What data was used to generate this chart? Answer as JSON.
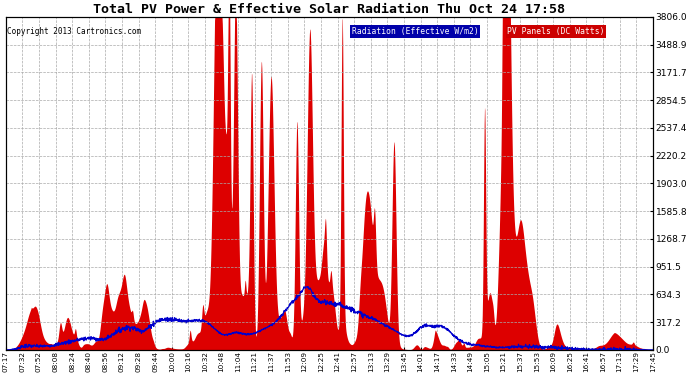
{
  "title": "Total PV Power & Effective Solar Radiation Thu Oct 24 17:58",
  "copyright": "Copyright 2013 Cartronics.com",
  "legend_radiation": "Radiation (Effective W/m2)",
  "legend_pv": "PV Panels (DC Watts)",
  "y_max": 3806.0,
  "y_min": 0.0,
  "y_ticks": [
    0.0,
    317.2,
    634.3,
    951.5,
    1268.7,
    1585.8,
    1903.0,
    2220.2,
    2537.4,
    2854.5,
    3171.7,
    3488.9,
    3806.0
  ],
  "x_labels": [
    "07:17",
    "07:32",
    "07:52",
    "08:08",
    "08:24",
    "08:40",
    "08:56",
    "09:12",
    "09:28",
    "09:44",
    "10:00",
    "10:16",
    "10:32",
    "10:48",
    "11:04",
    "11:21",
    "11:37",
    "11:53",
    "12:09",
    "12:25",
    "12:41",
    "12:57",
    "13:13",
    "13:29",
    "13:45",
    "14:01",
    "14:17",
    "14:33",
    "14:49",
    "15:05",
    "15:21",
    "15:37",
    "15:53",
    "16:09",
    "16:25",
    "16:41",
    "16:57",
    "17:13",
    "17:29",
    "17:45"
  ],
  "bg_color": "#ffffff",
  "plot_bg": "#ffffff",
  "grid_color": "#aaaaaa",
  "radiation_color": "#0000cc",
  "pv_fill_color": "#dd0000",
  "radiation_legend_bg": "#0000aa",
  "pv_legend_bg": "#cc0000"
}
